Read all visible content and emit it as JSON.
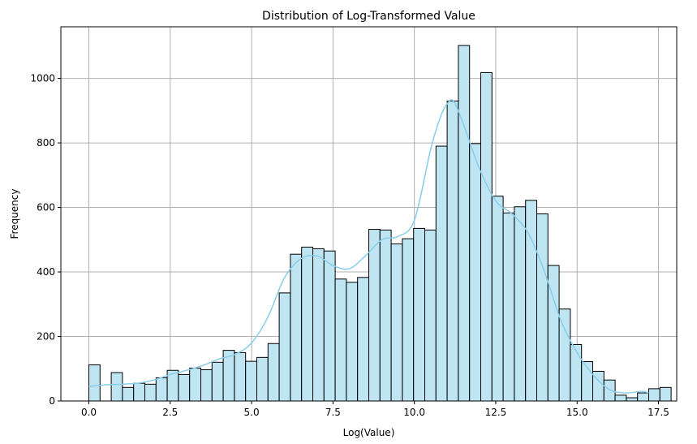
{
  "chart_data": {
    "type": "bar",
    "subtype": "histogram",
    "title": "Distribution of Log-Transformed Value",
    "xlabel": "Log(Value)",
    "ylabel": "Frequency",
    "xlim": [
      -0.86,
      18.06
    ],
    "ylim": [
      0,
      1160
    ],
    "xticks": [
      0.0,
      2.5,
      5.0,
      7.5,
      10.0,
      12.5,
      15.0,
      17.5
    ],
    "xtick_labels": [
      "0.0",
      "2.5",
      "5.0",
      "7.5",
      "10.0",
      "12.5",
      "15.0",
      "17.5"
    ],
    "yticks": [
      0,
      200,
      400,
      600,
      800,
      1000
    ],
    "ytick_labels": [
      "0",
      "200",
      "400",
      "600",
      "800",
      "1000"
    ],
    "grid": true,
    "bin_start": 0.0,
    "bin_width": 0.344,
    "counts": [
      112,
      0,
      88,
      42,
      55,
      52,
      72,
      95,
      82,
      102,
      97,
      120,
      157,
      150,
      123,
      135,
      178,
      335,
      455,
      477,
      472,
      465,
      378,
      368,
      383,
      532,
      530,
      487,
      503,
      535,
      530,
      790,
      930,
      1102,
      798,
      1018,
      635,
      583,
      602,
      622,
      580,
      420,
      285,
      175,
      122,
      92,
      65,
      18,
      10,
      25,
      38,
      42
    ],
    "kde": {
      "x": [
        0.0,
        0.5,
        1.0,
        1.5,
        2.0,
        2.5,
        3.0,
        3.5,
        4.0,
        4.5,
        5.0,
        5.5,
        6.0,
        6.5,
        7.0,
        7.5,
        8.0,
        8.5,
        9.0,
        9.5,
        10.0,
        10.5,
        10.8,
        11.0,
        11.2,
        11.5,
        12.0,
        12.5,
        13.0,
        13.5,
        14.0,
        14.5,
        15.0,
        15.5,
        16.0,
        16.5,
        17.0,
        17.2
      ],
      "y": [
        45,
        50,
        52,
        55,
        65,
        82,
        95,
        110,
        130,
        145,
        180,
        260,
        380,
        440,
        450,
        420,
        410,
        450,
        500,
        510,
        560,
        780,
        880,
        920,
        930,
        860,
        720,
        620,
        580,
        520,
        400,
        250,
        150,
        80,
        35,
        25,
        30,
        25
      ],
      "color": "#87ceeb"
    },
    "bar_fill": "#bfe4f2",
    "bar_edge": "#000000",
    "grid_color": "#b0b0b0"
  }
}
